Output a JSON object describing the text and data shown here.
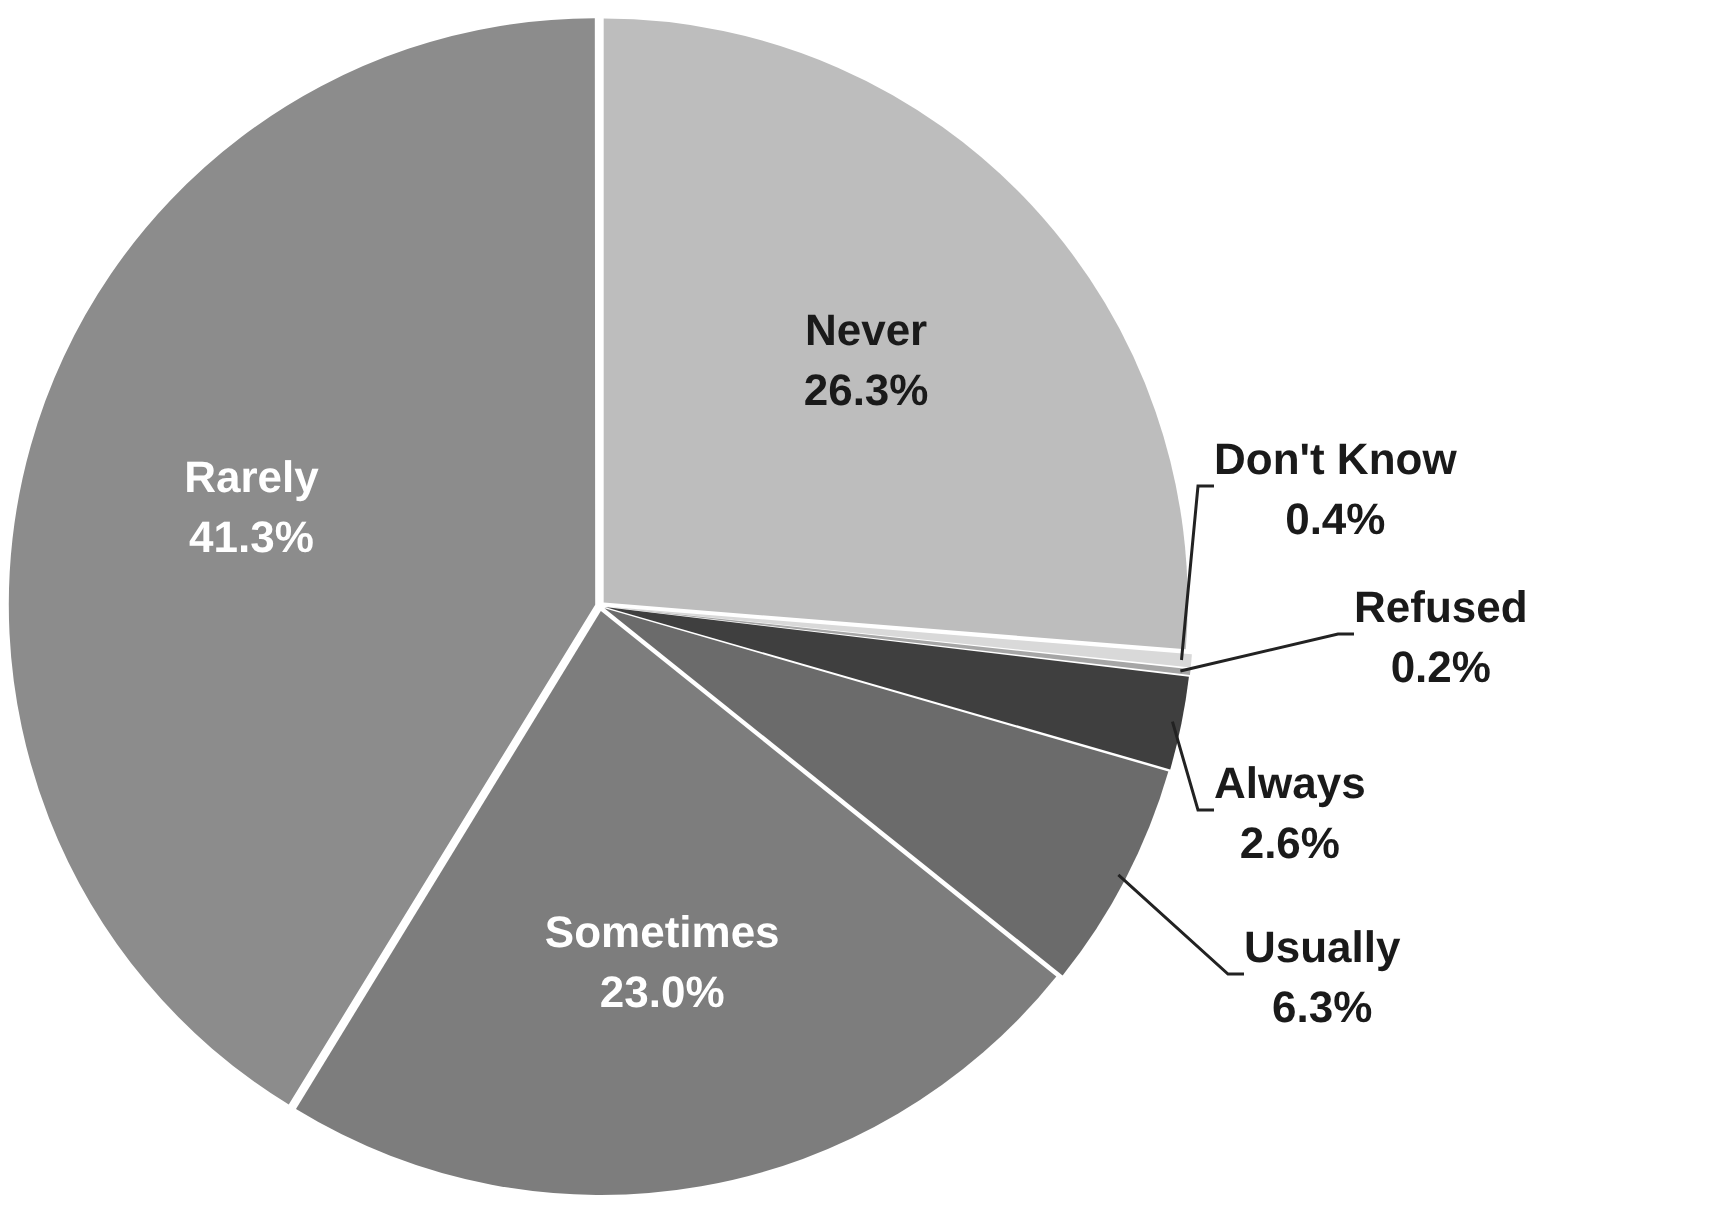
{
  "chart_data": {
    "type": "pie",
    "categories": [
      "Never",
      "Don't Know",
      "Refused",
      "Always",
      "Usually",
      "Sometimes",
      "Rarely"
    ],
    "values": [
      26.3,
      0.4,
      0.2,
      2.6,
      6.3,
      23.0,
      41.3
    ],
    "value_labels": [
      "26.3%",
      "0.4%",
      "0.2%",
      "2.6%",
      "6.3%",
      "23.0%",
      "41.3%"
    ],
    "colors": [
      "#bdbdbd",
      "#d9d9d9",
      "#a6a6a6",
      "#3f3f3f",
      "#6b6b6b",
      "#7d7d7d",
      "#8c8c8c"
    ],
    "legend": false
  }
}
